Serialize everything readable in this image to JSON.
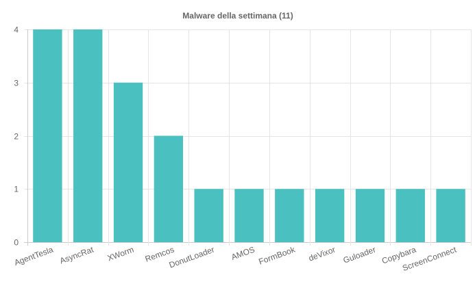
{
  "chart_data": {
    "type": "bar",
    "title": "Malware della settimana (11)",
    "xlabel": "",
    "ylabel": "",
    "categories": [
      "AgentTesla",
      "AsyncRat",
      "XWorm",
      "Remcos",
      "DonutLoader",
      "AMOS",
      "FormBook",
      "deVixor",
      "Guloader",
      "Copybara",
      "ScreenConnect"
    ],
    "values": [
      4,
      4,
      3,
      2,
      1,
      1,
      1,
      1,
      1,
      1,
      1
    ],
    "ylim": [
      0,
      4
    ],
    "yticks": [
      "0",
      "1",
      "2",
      "3",
      "4"
    ],
    "grid": true,
    "legend": "none",
    "bar_color": "#4bc0c0"
  }
}
